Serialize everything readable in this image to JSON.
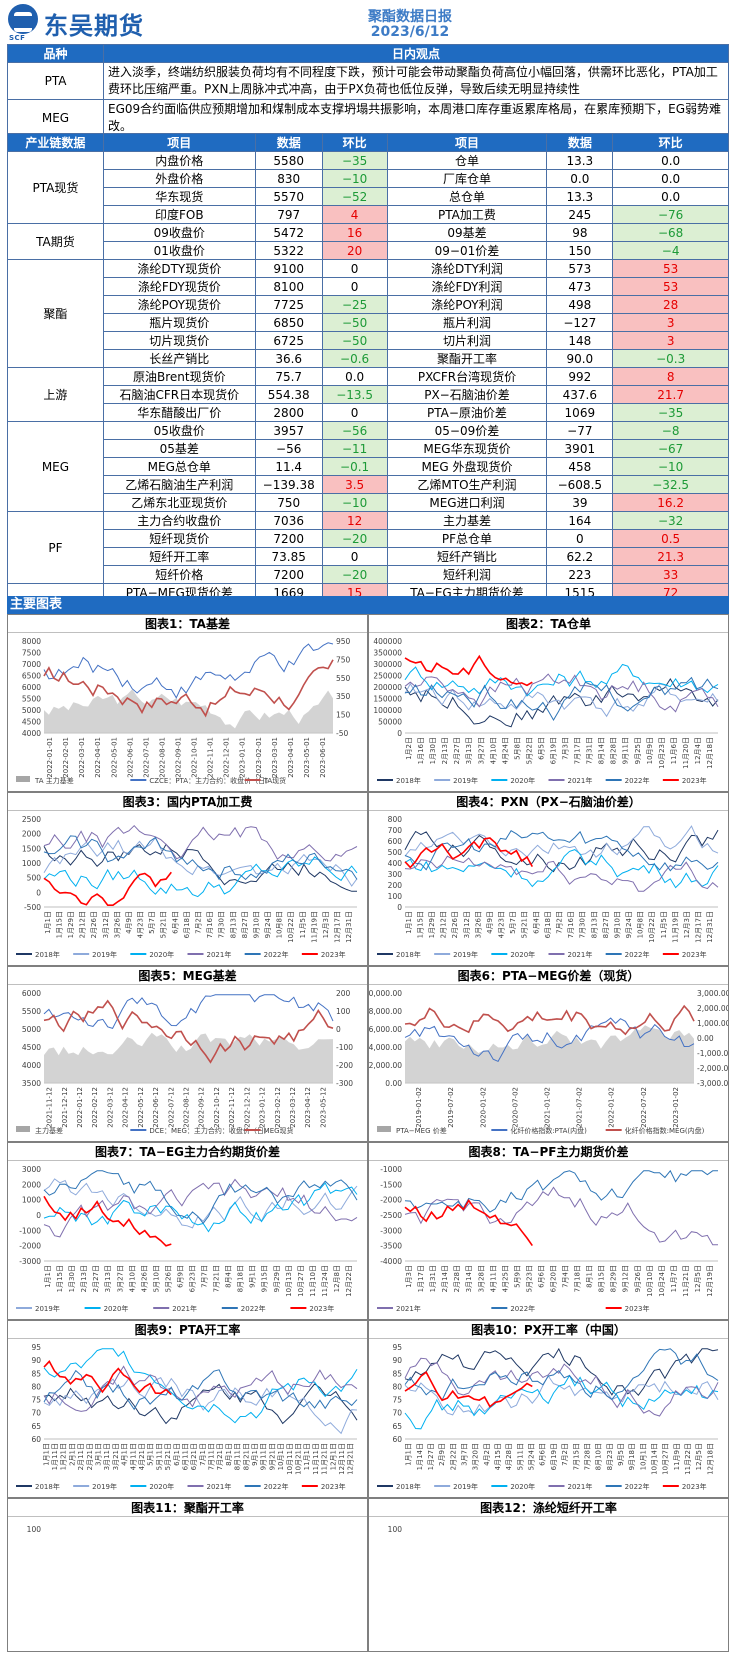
{
  "header": {
    "logo_text": "东吴期货",
    "logo_sub": "SCF",
    "report_title": "聚酯数据日报",
    "report_date": "2023/6/12"
  },
  "views": {
    "col_product": "品种",
    "col_view": "日内观点",
    "rows": [
      {
        "product": "PTA",
        "text": "进入淡季，终端纺织服装负荷均有不同程度下跌，预计可能会带动聚酯负荷高位小幅回落，供需环比恶化，PTA加工费环比压缩严重。PXN上周脉冲式冲高，由于PX负荷也低位反弹，导致后续无明显持续性"
      },
      {
        "product": "MEG",
        "text": "EG09合约面临供应预期增加和煤制成本支撑坍塌共振影响，本周港口库存重返累库格局，在累库预期下，EG弱势难改。"
      }
    ]
  },
  "data_table": {
    "headers": [
      "产业链数据",
      "项目",
      "数据",
      "环比",
      "项目",
      "数据",
      "环比"
    ],
    "groups": [
      {
        "name": "PTA现货",
        "rows": [
          [
            "内盘价格",
            "5580",
            "−35",
            "仓单",
            "13.3",
            "0.0"
          ],
          [
            "外盘价格",
            "830",
            "−10",
            "厂库仓单",
            "0.0",
            "0.0"
          ],
          [
            "华东现货",
            "5570",
            "−52",
            "总仓单",
            "13.3",
            "0.0"
          ],
          [
            "印度FOB",
            "797",
            "4",
            "PTA加工费",
            "245",
            "−76"
          ]
        ]
      },
      {
        "name": "TA期货",
        "rows": [
          [
            "09收盘价",
            "5472",
            "16",
            "09基差",
            "98",
            "−68"
          ],
          [
            "01收盘价",
            "5322",
            "20",
            "09−01价差",
            "150",
            "−4"
          ]
        ]
      },
      {
        "name": "聚酯",
        "rows": [
          [
            "涤纶DTY现货价",
            "9100",
            "0",
            "涤纶DTY利润",
            "573",
            "53"
          ],
          [
            "涤纶FDY现货价",
            "8100",
            "0",
            "涤纶FDY利润",
            "473",
            "53"
          ],
          [
            "涤纶POY现货价",
            "7725",
            "−25",
            "涤纶POY利润",
            "498",
            "28"
          ],
          [
            "瓶片现货价",
            "6850",
            "−50",
            "瓶片利润",
            "−127",
            "3"
          ],
          [
            "切片现货价",
            "6725",
            "−50",
            "切片利润",
            "148",
            "3"
          ],
          [
            "长丝产销比",
            "36.6",
            "−0.6",
            "聚酯开工率",
            "90.0",
            "−0.3"
          ]
        ]
      },
      {
        "name": "上游",
        "rows": [
          [
            "原油Brent现货价",
            "75.7",
            "0.0",
            "PXCFR台湾现货价",
            "992",
            "8"
          ],
          [
            "石脑油CFR日本现货价",
            "554.38",
            "−13.5",
            "PX−石脑油价差",
            "437.6",
            "21.7"
          ],
          [
            "华东醋酸出厂价",
            "2800",
            "0",
            "PTA−原油价差",
            "1069",
            "−35"
          ]
        ]
      },
      {
        "name": "MEG",
        "rows": [
          [
            "05收盘价",
            "3957",
            "−56",
            "05−09价差",
            "−77",
            "−8"
          ],
          [
            "05基差",
            "−56",
            "−11",
            "MEG华东现货价",
            "3901",
            "−67"
          ],
          [
            "MEG总仓单",
            "11.4",
            "−0.1",
            "MEG 外盘现货价",
            "458",
            "−10"
          ],
          [
            "乙烯石脑油生产利润",
            "−139.38",
            "3.5",
            "乙烯MTO生产利润",
            "−608.5",
            "−32.5"
          ],
          [
            "乙烯东北亚现货价",
            "750",
            "−10",
            "MEG进口利润",
            "39",
            "16.2"
          ]
        ]
      },
      {
        "name": "PF",
        "rows": [
          [
            "主力合约收盘价",
            "7036",
            "12",
            "主力基差",
            "164",
            "−32"
          ],
          [
            "短纤现货价",
            "7200",
            "−20",
            "PF总仓单",
            "0",
            "0.5"
          ],
          [
            "短纤开工率",
            "73.85",
            "0",
            "短纤产销比",
            "62.2",
            "21.3"
          ],
          [
            "短纤价格",
            "7200",
            "−20",
            "短纤利润",
            "223",
            "33"
          ]
        ]
      },
      {
        "name": "产业链现货及合约价差",
        "rows": [
          [
            "PTA−MEG现货价差",
            "1669",
            "15",
            "TA−EG主力期货价差",
            "1515",
            "72"
          ],
          [
            "PTA−PF现货价差",
            "−1630",
            "−32",
            "TA−PF主力期货价差",
            "−1564",
            "4"
          ],
          [
            "MEG−PF现货价差",
            "−3299",
            "−47",
            "EG−PF主力期货价差",
            "−3079",
            "−68"
          ]
        ]
      }
    ]
  },
  "section_title": "主要图表",
  "colors": {
    "y2018": "#1f3864",
    "y2019": "#8eaadb",
    "y2020": "#00b0f0",
    "y2021": "#7f6fae",
    "y2022": "#2e75b6",
    "y2023": "#ff0000",
    "grey": "#a6a6a6",
    "blue": "#4472c4",
    "red": "#c0504d"
  },
  "charts": [
    {
      "title": "图表1：TA基差",
      "yl": [
        "8000",
        "7500",
        "7000",
        "6500",
        "6000",
        "5500",
        "5000",
        "4500",
        "4000"
      ],
      "yr": [
        "950",
        "750",
        "550",
        "350",
        "150",
        "-50"
      ],
      "x": [
        "2022-01-01",
        "2022-02-01",
        "2022-03-01",
        "2022-04-01",
        "2022-05-01",
        "2022-06-01",
        "2022-07-01",
        "2022-08-01",
        "2022-09-01",
        "2022-10-01",
        "2022-11-01",
        "2022-12-01",
        "2023-01-01",
        "2023-02-01",
        "2023-03-01",
        "2023-04-01",
        "2023-05-01",
        "2023-06-01"
      ],
      "legend": [
        "TA 主力基差",
        "CZCE：PTA：主力合约：收盘价（日）",
        "TA现货"
      ]
    },
    {
      "title": "图表2：TA仓单",
      "yl": [
        "400000",
        "350000",
        "300000",
        "250000",
        "200000",
        "150000",
        "100000",
        "50000",
        "0"
      ],
      "x": [
        "1月2日",
        "1月16日",
        "1月30日",
        "2月13日",
        "2月27日",
        "3月13日",
        "3月27日",
        "4月10日",
        "4月24日",
        "5月8日",
        "5月22日",
        "6月5日",
        "6月19日",
        "7月3日",
        "7月17日",
        "7月31日",
        "8月14日",
        "8月28日",
        "9月11日",
        "9月25日",
        "10月9日",
        "10月23日",
        "11月6日",
        "11月20日",
        "12月4日",
        "12月18日"
      ],
      "legend": [
        "2018年",
        "2019年",
        "2020年",
        "2021年",
        "2022年",
        "2023年"
      ]
    },
    {
      "title": "图表3：国内PTA加工费",
      "yl": [
        "2500",
        "2000",
        "1500",
        "1000",
        "500",
        "0",
        "-500"
      ],
      "x": [
        "1月1日",
        "1月15日",
        "1月29日",
        "2月12日",
        "2月26日",
        "3月12日",
        "3月26日",
        "4月9日",
        "4月23日",
        "5月7日",
        "5月21日",
        "6月4日",
        "6月18日",
        "7月2日",
        "7月16日",
        "7月30日",
        "8月13日",
        "8月27日",
        "9月10日",
        "9月24日",
        "10月8日",
        "10月22日",
        "11月5日",
        "11月19日",
        "12月3日",
        "12月17日",
        "12月31日"
      ],
      "legend": [
        "2018年",
        "2019年",
        "2020年",
        "2021年",
        "2022年",
        "2023年"
      ]
    },
    {
      "title": "图表4：PXN（PX−石脑油价差）",
      "yl": [
        "800",
        "700",
        "600",
        "500",
        "400",
        "300",
        "200",
        "100",
        "0"
      ],
      "x": [
        "1月1日",
        "1月15日",
        "1月29日",
        "2月12日",
        "2月26日",
        "3月12日",
        "3月26日",
        "4月9日",
        "4月23日",
        "5月7日",
        "5月21日",
        "6月4日",
        "6月18日",
        "7月2日",
        "7月16日",
        "7月30日",
        "8月13日",
        "8月27日",
        "9月10日",
        "9月24日",
        "10月8日",
        "10月22日",
        "11月5日",
        "11月19日",
        "12月3日",
        "12月17日",
        "12月31日"
      ],
      "legend": [
        "2018年",
        "2019年",
        "2020年",
        "2021年",
        "2022年",
        "2023年"
      ]
    },
    {
      "title": "图表5：MEG基差",
      "yl": [
        "6000",
        "5500",
        "5000",
        "4500",
        "4000",
        "3500"
      ],
      "yr": [
        "200",
        "100",
        "0",
        "-100",
        "-200",
        "-300"
      ],
      "x": [
        "2021-11-12",
        "2021-12-12",
        "2022-01-12",
        "2022-02-12",
        "2022-03-12",
        "2022-04-12",
        "2022-05-12",
        "2022-06-12",
        "2022-07-12",
        "2022-08-12",
        "2022-09-12",
        "2022-10-12",
        "2022-11-12",
        "2022-12-12",
        "2023-01-12",
        "2023-02-12",
        "2023-03-12",
        "2023-04-12",
        "2023-05-12"
      ],
      "legend": [
        "主力基差",
        "DCE：MEG：主力合约：收盘价（日）",
        "MEG现货"
      ]
    },
    {
      "title": "图表6：PTA−MEG价差（现货）",
      "yl": [
        "10,000.00",
        "8,000.00",
        "6,000.00",
        "4,000.00",
        "2,000.00",
        "0.00"
      ],
      "yr": [
        "3,000.00",
        "2,000.00",
        "1,000.00",
        "0.00",
        "-1,000.00",
        "-2,000.00",
        "-3,000.00"
      ],
      "x": [
        "2019-01-02",
        "2019-07-02",
        "2020-01-02",
        "2020-07-02",
        "2021-01-02",
        "2021-07-02",
        "2022-01-02",
        "2022-07-02",
        "2023-01-02"
      ],
      "legend": [
        "PTA−MEG 价差",
        "化纤价格指数:PTA(内盘)",
        "化纤价格指数:MEG(内盘)"
      ]
    },
    {
      "title": "图表7：TA−EG主力合约期货价差",
      "yl": [
        "3000",
        "2000",
        "1000",
        "0",
        "-1000",
        "-2000",
        "-3000"
      ],
      "x": [
        "1月1日",
        "1月15日",
        "1月30日",
        "2月13日",
        "2月27日",
        "3月13日",
        "3月27日",
        "4月10日",
        "4月26日",
        "5月10日",
        "5月26日",
        "6月9日",
        "6月23日",
        "7月7日",
        "7月21日",
        "8月4日",
        "8月18日",
        "9月1日",
        "9月15日",
        "9月29日",
        "10月13日",
        "10月27日",
        "11月10日",
        "11月24日",
        "12月8日",
        "12月22日"
      ],
      "legend": [
        "2019年",
        "2020年",
        "2021年",
        "2022年",
        "2023年"
      ]
    },
    {
      "title": "图表8：TA−PF主力期货价差",
      "yl": [
        "-1000",
        "-1500",
        "-2000",
        "-2500",
        "-3000",
        "-3500",
        "-4000"
      ],
      "x": [
        "1月3日",
        "1月17日",
        "1月31日",
        "2月14日",
        "2月28日",
        "3月14日",
        "3月28日",
        "4月11日",
        "4月25日",
        "5月9日",
        "5月23日",
        "6月6日",
        "6月20日",
        "7月4日",
        "7月18日",
        "8月1日",
        "8月15日",
        "8月29日",
        "9月12日",
        "9月26日",
        "10月10日",
        "10月24日",
        "11月7日",
        "11月21日",
        "12月5日",
        "12月19日"
      ],
      "legend": [
        "2021年",
        "2022年",
        "2023年"
      ]
    },
    {
      "title": "图表9：PTA开工率",
      "yl": [
        "95",
        "90",
        "85",
        "80",
        "75",
        "70",
        "65",
        "60"
      ],
      "x": [
        "1月1日",
        "1月11日",
        "1月21日",
        "2月1日",
        "2月11日",
        "2月21日",
        "3月1日",
        "3月11日",
        "3月21日",
        "4月1日",
        "4月11日",
        "4月21日",
        "5月1日",
        "5月11日",
        "5月21日",
        "6月1日",
        "6月11日",
        "6月21日",
        "7月1日",
        "7月11日",
        "7月21日",
        "8月1日",
        "8月11日",
        "8月21日",
        "9月1日",
        "9月11日",
        "9月21日",
        "10月1日",
        "10月11日",
        "10月21日",
        "11月1日",
        "11月11日",
        "11月21日",
        "12月1日",
        "12月11日",
        "12月21日"
      ],
      "legend": [
        "2018年",
        "2019年",
        "2020年",
        "2021年",
        "2022年",
        "2023年"
      ]
    },
    {
      "title": "图表10：PX开工率（中国）",
      "yl": [
        "95",
        "90",
        "85",
        "80",
        "75",
        "70",
        "65",
        "60"
      ],
      "x": [
        "1月1日",
        "1月14日",
        "1月27日",
        "2月9日",
        "2月22日",
        "3月7日",
        "3月20日",
        "4月2日",
        "4月15日",
        "4月28日",
        "5月11日",
        "5月24日",
        "6月6日",
        "6月19日",
        "7月2日",
        "7月15日",
        "7月28日",
        "8月10日",
        "8月23日",
        "9月5日",
        "9月18日",
        "10月1日",
        "10月14日",
        "10月27日",
        "11月9日",
        "11月22日",
        "12月5日",
        "12月18日"
      ],
      "legend": [
        "2018年",
        "2019年",
        "2020年",
        "2021年",
        "2022年",
        "2023年"
      ]
    },
    {
      "title": "图表11：聚酯开工率",
      "yl": [
        "100"
      ],
      "x": [],
      "legend": []
    },
    {
      "title": "图表12：涤纶短纤开工率",
      "yl": [
        "100"
      ],
      "x": [],
      "legend": []
    }
  ]
}
